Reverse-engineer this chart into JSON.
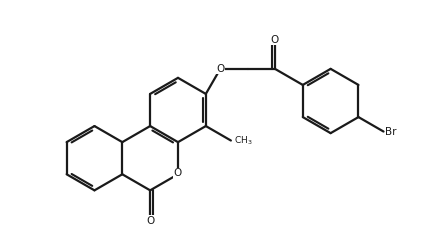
{
  "bg": "#ffffff",
  "lc": "#1a1a1a",
  "lw": 1.6,
  "figsize": [
    4.32,
    2.38
  ],
  "dpi": 100,
  "xlim": [
    0,
    10
  ],
  "ylim": [
    0,
    6
  ],
  "BL": 0.82
}
